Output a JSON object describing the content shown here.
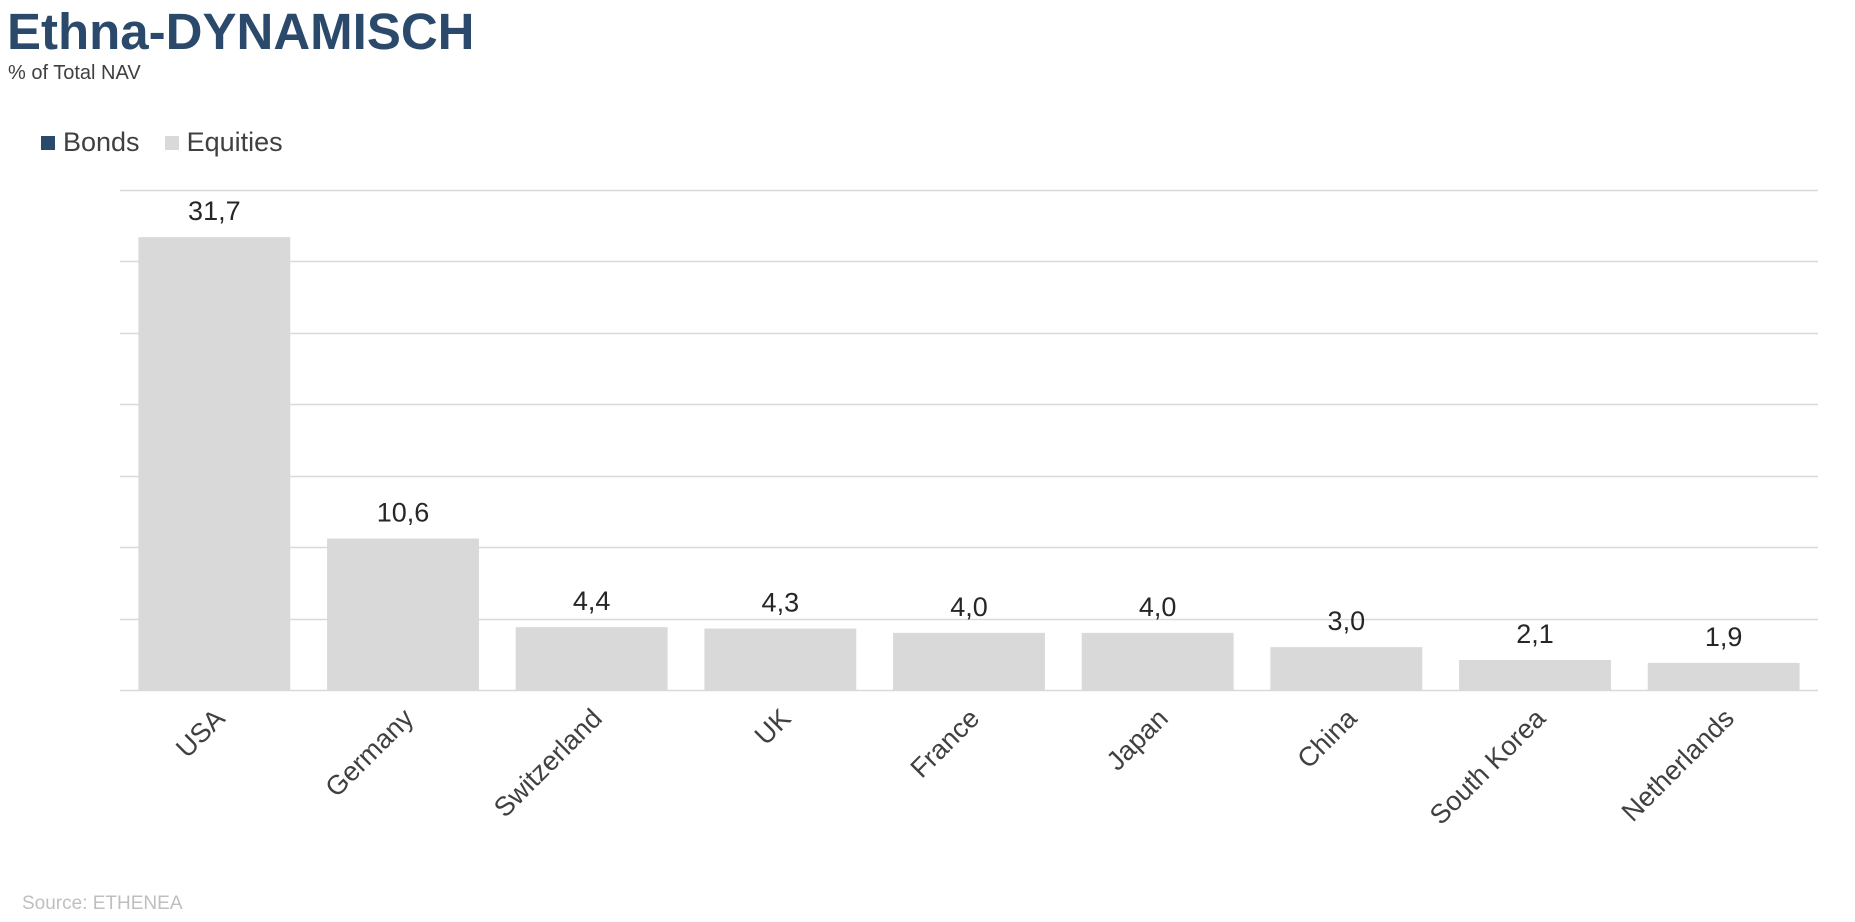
{
  "chart_data": {
    "type": "bar",
    "title": "Ethna-DYNAMISCH",
    "subtitle": "% of Total NAV",
    "source": "Source: ETHENEA",
    "categories": [
      "USA",
      "Germany",
      "Switzerland",
      "UK",
      "France",
      "Japan",
      "China",
      "South Korea",
      "Netherlands"
    ],
    "series": [
      {
        "name": "Bonds",
        "color": "#2b4a6b",
        "values": [
          null,
          null,
          null,
          null,
          null,
          null,
          null,
          null,
          null
        ]
      },
      {
        "name": "Equities",
        "color": "#d9d9d9",
        "values": [
          31.7,
          10.6,
          4.4,
          4.3,
          4.0,
          4.0,
          3.0,
          2.1,
          1.9
        ]
      }
    ],
    "data_labels": [
      "31,7",
      "10,6",
      "4,4",
      "4,3",
      "4,0",
      "4,0",
      "3,0",
      "2,1",
      "1,9"
    ],
    "ylim": [
      0,
      35
    ],
    "grid": true,
    "legend_position": "top-left",
    "xlabel": "",
    "ylabel": ""
  }
}
